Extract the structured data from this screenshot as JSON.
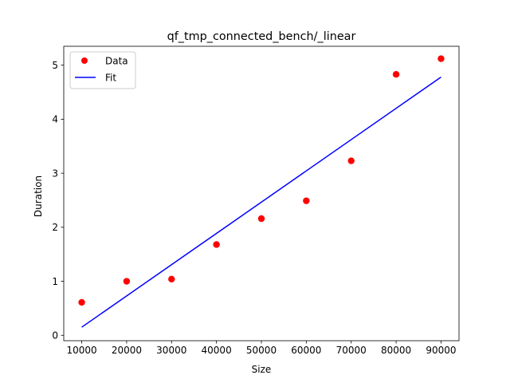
{
  "chart_data": {
    "type": "scatter",
    "title": "qf_tmp_connected_bench/_linear",
    "xlabel": "Size",
    "ylabel": "Duration",
    "xlim": [
      6000,
      94000
    ],
    "ylim": [
      -0.1,
      5.35
    ],
    "xticks": [
      10000,
      20000,
      30000,
      40000,
      50000,
      60000,
      70000,
      80000,
      90000
    ],
    "yticks": [
      0,
      1,
      2,
      3,
      4,
      5
    ],
    "grid": false,
    "legend_position": "top-left",
    "series": [
      {
        "name": "Data",
        "kind": "scatter",
        "color": "#ff0000",
        "x": [
          10000,
          20000,
          30000,
          40000,
          50000,
          60000,
          70000,
          80000,
          90000
        ],
        "y": [
          0.61,
          1.0,
          1.04,
          1.68,
          2.16,
          2.49,
          3.23,
          4.83,
          5.12
        ]
      },
      {
        "name": "Fit",
        "kind": "line",
        "color": "#0000ff",
        "x": [
          10000,
          90000
        ],
        "y": [
          0.15,
          4.78
        ]
      }
    ]
  }
}
